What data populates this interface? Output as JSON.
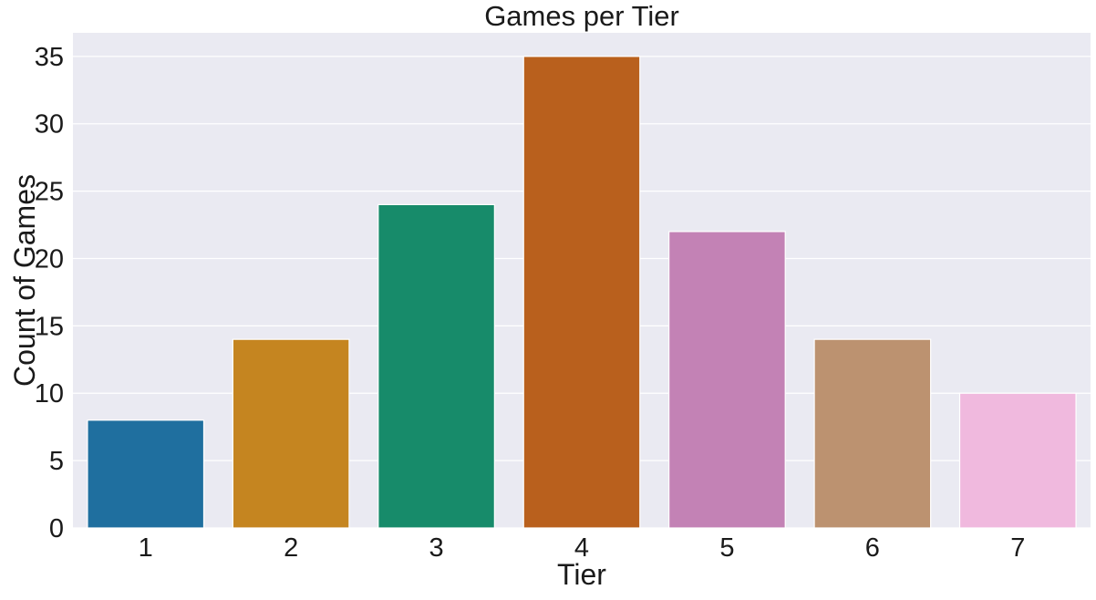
{
  "chart_data": {
    "type": "bar",
    "title": "Games per Tier",
    "xlabel": "Tier",
    "ylabel": "Count of Games",
    "categories": [
      "1",
      "2",
      "3",
      "4",
      "5",
      "6",
      "7"
    ],
    "values": [
      8,
      14,
      24,
      35,
      22,
      14,
      10
    ],
    "colors": [
      "#1f6f9f",
      "#c58520",
      "#178b6a",
      "#b9601d",
      "#c382b5",
      "#bc9270",
      "#f0b9de"
    ],
    "ylim": [
      0,
      36.75
    ],
    "yticks": [
      0,
      5,
      10,
      15,
      20,
      25,
      30,
      35
    ],
    "grid": true,
    "legend": "none",
    "background_color": "#eaeaf2",
    "grid_color": "#ffffff"
  }
}
